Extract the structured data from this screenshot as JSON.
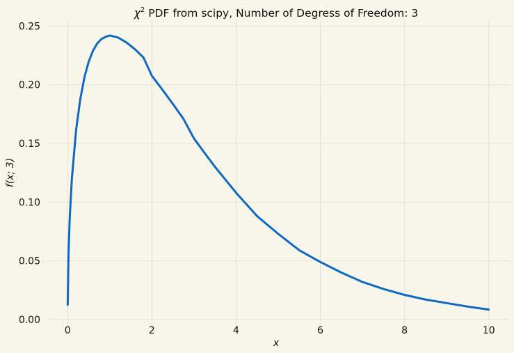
{
  "chart_data": {
    "type": "line",
    "title_parts": {
      "symbol": "χ",
      "superscript": "2",
      "rest": " PDF from scipy, Number of Degress of Freedom: 3"
    },
    "xlabel": "x",
    "ylabel": "f(x; 3)",
    "xlim": [
      -0.5,
      10.5
    ],
    "ylim": [
      -0.0125,
      0.255
    ],
    "x_ticks": [
      0,
      2,
      4,
      6,
      8,
      10
    ],
    "x_tick_labels": [
      "0",
      "2",
      "4",
      "6",
      "8",
      "10"
    ],
    "y_ticks": [
      0.0,
      0.05,
      0.1,
      0.15,
      0.2,
      0.25
    ],
    "y_tick_labels": [
      "0.00",
      "0.05",
      "0.10",
      "0.15",
      "0.20",
      "0.25"
    ],
    "grid": true,
    "series": [
      {
        "color": "#0f68c2",
        "x": [
          0.001,
          0.02,
          0.05,
          0.1,
          0.2,
          0.3,
          0.4,
          0.5,
          0.6,
          0.7,
          0.8,
          0.9,
          1.0,
          1.2,
          1.4,
          1.6,
          1.8,
          2.0,
          2.25,
          2.5,
          2.75,
          3.0,
          3.25,
          3.5,
          3.75,
          4.0,
          4.5,
          5.0,
          5.5,
          6.0,
          6.5,
          7.0,
          7.5,
          8.0,
          8.5,
          9.0,
          9.5,
          10.0
        ],
        "y": [
          0.0126,
          0.0557,
          0.087,
          0.12,
          0.1614,
          0.1878,
          0.2066,
          0.2197,
          0.2289,
          0.2351,
          0.2389,
          0.2408,
          0.242,
          0.2402,
          0.2359,
          0.2302,
          0.2232,
          0.2076,
          0.1958,
          0.1836,
          0.1709,
          0.1542,
          0.142,
          0.13,
          0.119,
          0.108,
          0.088,
          0.073,
          0.059,
          0.049,
          0.04,
          0.032,
          0.026,
          0.021,
          0.017,
          0.014,
          0.011,
          0.0085
        ]
      }
    ]
  }
}
